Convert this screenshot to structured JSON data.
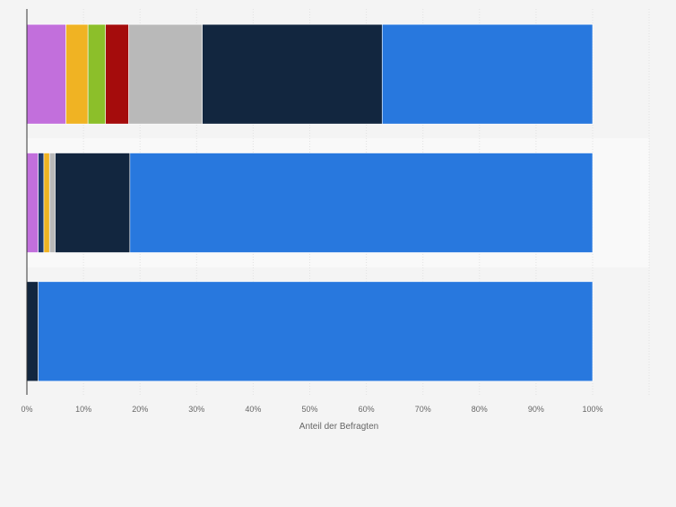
{
  "chart_data": {
    "type": "bar",
    "orientation": "horizontal",
    "stacked": true,
    "xlabel": "Anteil der Befragten",
    "xlim": [
      0,
      100
    ],
    "tick_labels": [
      "0%",
      "10%",
      "20%",
      "30%",
      "40%",
      "50%",
      "60%",
      "70%",
      "80%",
      "90%",
      "100%"
    ],
    "categories": [
      "",
      "",
      ""
    ],
    "grid": true,
    "legend": "none",
    "series": [
      {
        "color": "#c26fdc",
        "values": [
          6.9,
          2.0,
          0.0
        ]
      },
      {
        "color": "#1f3a6e",
        "values": [
          0.0,
          1.0,
          0.0
        ]
      },
      {
        "color": "#f0b323",
        "values": [
          3.9,
          1.0,
          0.0
        ]
      },
      {
        "color": "#8cbf2a",
        "values": [
          3.1,
          0.0,
          0.0
        ]
      },
      {
        "color": "#a50c0c",
        "values": [
          4.1,
          0.0,
          0.0
        ]
      },
      {
        "color": "#b9b9b9",
        "values": [
          13.0,
          1.0,
          0.0
        ]
      },
      {
        "color": "#12263f",
        "values": [
          31.8,
          13.2,
          2.0
        ]
      },
      {
        "color": "#2878de",
        "values": [
          37.2,
          81.8,
          98.0
        ]
      }
    ]
  }
}
